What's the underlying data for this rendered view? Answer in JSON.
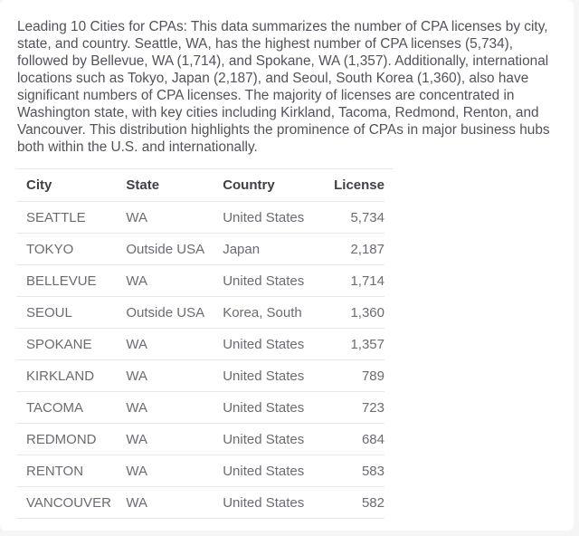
{
  "summary": "Leading 10 Cities for CPAs: This data summarizes the number of CPA licenses by city, state, and country. Seattle, WA, has the highest number of CPA licenses (5,734), followed by Bellevue, WA (1,714), and Spokane, WA (1,357). Additionally, international locations such as Tokyo, Japan (2,187), and Seoul, South Korea (1,360), also have significant numbers of CPA licenses. The majority of licenses are concentrated in Washington state, with key cities including Kirkland, Tacoma, Redmond, Renton, and Vancouver. This distribution highlights the prominence of CPAs in major business hubs both within the U.S. and internationally.",
  "table": {
    "headers": [
      "City",
      "State",
      "Country",
      "License"
    ],
    "rows": [
      [
        "SEATTLE",
        "WA",
        "United States",
        "5,734"
      ],
      [
        "TOKYO",
        "Outside USA",
        "Japan",
        "2,187"
      ],
      [
        "BELLEVUE",
        "WA",
        "United States",
        "1,714"
      ],
      [
        "SEOUL",
        "Outside USA",
        "Korea, South",
        "1,360"
      ],
      [
        "SPOKANE",
        "WA",
        "United States",
        "1,357"
      ],
      [
        "KIRKLAND",
        "WA",
        "United States",
        "789"
      ],
      [
        "TACOMA",
        "WA",
        "United States",
        "723"
      ],
      [
        "REDMOND",
        "WA",
        "United States",
        "684"
      ],
      [
        "RENTON",
        "WA",
        "United States",
        "583"
      ],
      [
        "VANCOUVER",
        "WA",
        "United States",
        "582"
      ]
    ]
  }
}
